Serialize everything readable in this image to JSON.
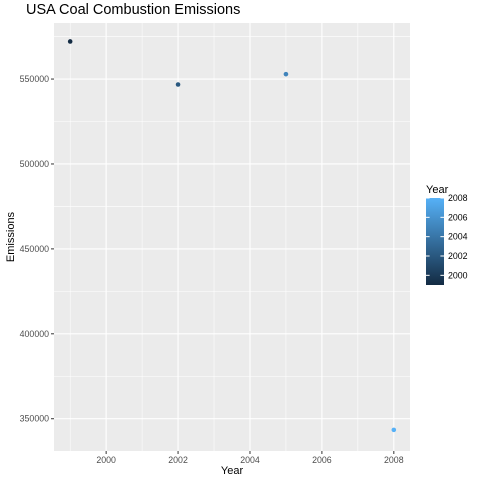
{
  "chart_data": {
    "type": "scatter",
    "title": "USA Coal Combustion Emissions",
    "xlabel": "Year",
    "ylabel": "Emissions",
    "xlim": [
      1998.55,
      2008.45
    ],
    "ylim": [
      331000,
      583000
    ],
    "x_ticks": [
      2000,
      2002,
      2004,
      2006,
      2008
    ],
    "y_ticks": [
      350000,
      400000,
      450000,
      500000,
      550000
    ],
    "grid": true,
    "points": [
      {
        "x": 1999,
        "y": 572126,
        "color_value": 1999
      },
      {
        "x": 2002,
        "y": 546789,
        "color_value": 2002
      },
      {
        "x": 2005,
        "y": 552881,
        "color_value": 2005
      },
      {
        "x": 2008,
        "y": 343432,
        "color_value": 2008
      }
    ],
    "legend": {
      "title": "Year",
      "placement": "right",
      "range": [
        1999,
        2008
      ],
      "ticks": [
        2000,
        2002,
        2004,
        2006,
        2008
      ],
      "color_low": "#132B43",
      "color_high": "#56B1F7"
    },
    "colors": {
      "panel_background": "#EBEBEB",
      "grid_major": "#FFFFFF"
    }
  }
}
